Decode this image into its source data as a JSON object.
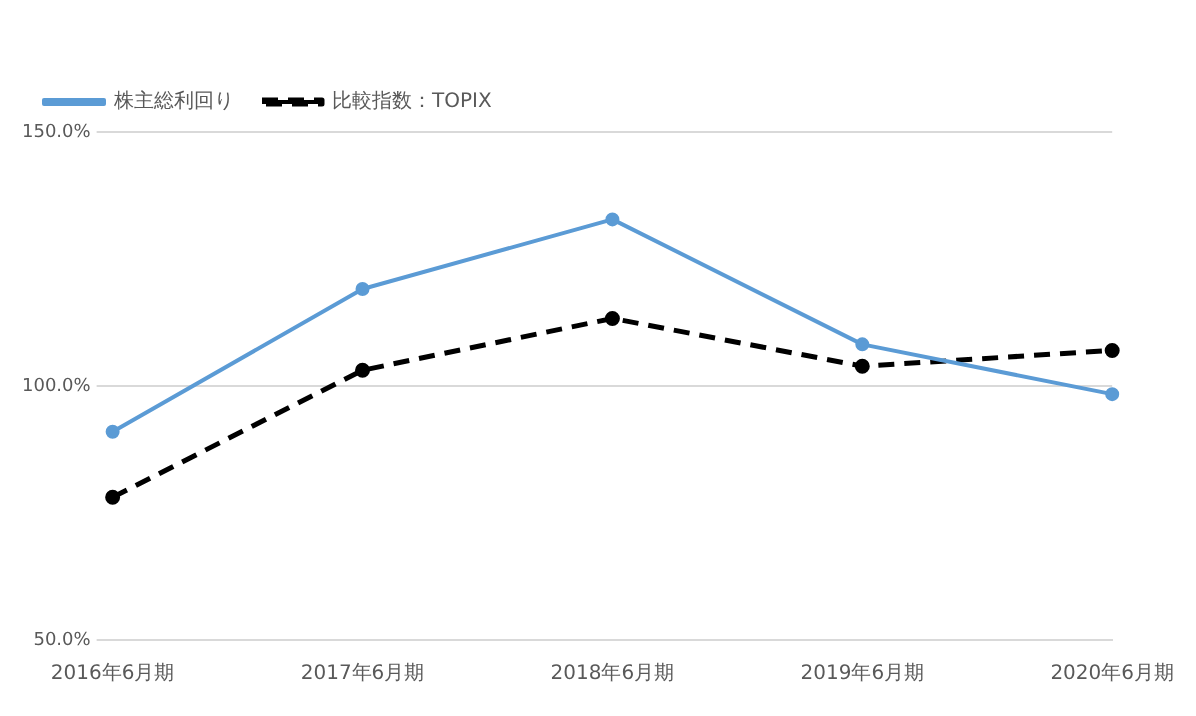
{
  "chart_data": {
    "type": "line",
    "categories": [
      "2016年6月期",
      "2017年6月期",
      "2018年6月期",
      "2019年6月期",
      "2020年6月期"
    ],
    "series": [
      {
        "name": "株主総利回り",
        "color": "#5b9bd5",
        "values": [
          91.0,
          119.1,
          132.8,
          108.2,
          98.4
        ],
        "line_style": "solid"
      },
      {
        "name": "比較指数：TOPIX",
        "color": "#000000",
        "values": [
          78.1,
          103.1,
          113.3,
          103.9,
          107.0
        ],
        "line_style": "dashed"
      }
    ],
    "ylim": [
      50,
      150
    ],
    "yticks": [
      {
        "value": 50,
        "label": "50.0%"
      },
      {
        "value": 100,
        "label": "100.0%"
      },
      {
        "value": 150,
        "label": "150.0%"
      }
    ],
    "grid": "y",
    "legend": "top left",
    "marker": "circle"
  }
}
